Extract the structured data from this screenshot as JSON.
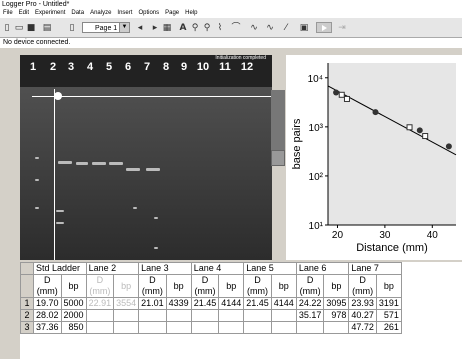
{
  "app": {
    "title": "Logger Pro - Untitled*",
    "status": "No device connected.",
    "page": "Page 1"
  },
  "menu": [
    "File",
    "Edit",
    "Experiment",
    "Data",
    "Analyze",
    "Insert",
    "Options",
    "Page",
    "Help"
  ],
  "toolbar_icons": [
    "new-file-icon",
    "open-icon",
    "save-icon",
    "print-icon",
    "page-icon",
    "prev-page-icon",
    "next-page-icon",
    "table-icon",
    "text-icon",
    "zoom-in-icon",
    "zoom-out-icon",
    "stats-icon",
    "tangent-icon",
    "model-icon",
    "curve-fit-icon",
    "linear-fit-icon",
    "photo-icon",
    "collect-button",
    "keep-icon"
  ],
  "gel": {
    "init_text": "Initialization completed",
    "lanes": [
      "1",
      "2",
      "3",
      "4",
      "5",
      "6",
      "7",
      "8",
      "9",
      "10",
      "11",
      "12"
    ]
  },
  "chart_data": {
    "type": "scatter",
    "ylabel": "base pairs",
    "xlabel": "Distance (mm)",
    "yscale": "log",
    "xlim": [
      18,
      45
    ],
    "ylim": [
      10,
      20000
    ],
    "xticks": [
      "20",
      "30",
      "40"
    ],
    "yticks": [
      "10⁴",
      "10³",
      "10²",
      "10¹"
    ],
    "grid": false,
    "series": [
      {
        "marker": "filled-circle",
        "x": [
          19.7,
          28.02,
          37.36,
          43.5
        ],
        "y": [
          5000,
          2000,
          850,
          400
        ]
      },
      {
        "marker": "open-square",
        "x": [
          20.9,
          22.0,
          35.2,
          38.5
        ],
        "y": [
          4500,
          3700,
          980,
          650
        ]
      }
    ],
    "fit_line": {
      "x": [
        18,
        45
      ],
      "y": [
        6800,
        270
      ]
    }
  },
  "table": {
    "groups": [
      "Std Ladder",
      "Lane 2",
      "Lane 3",
      "Lane 4",
      "Lane 5",
      "Lane 6",
      "Lane 7"
    ],
    "units": [
      "D\n(mm)",
      "bp"
    ],
    "rows": [
      {
        "n": "1",
        "cells": [
          "19.70",
          "5000",
          "22.91",
          "3554",
          "21.01",
          "4339",
          "21.45",
          "4144",
          "21.45",
          "4144",
          "24.22",
          "3095",
          "23.93",
          "3191"
        ]
      },
      {
        "n": "2",
        "cells": [
          "28.02",
          "2000",
          "",
          "",
          "",
          "",
          "",
          "",
          "",
          "",
          "35.17",
          "978",
          "40.27",
          "571"
        ]
      },
      {
        "n": "3",
        "cells": [
          "37.36",
          "850",
          "",
          "",
          "",
          "",
          "",
          "",
          "",
          "",
          "",
          "",
          "47.72",
          "261"
        ]
      }
    ]
  }
}
